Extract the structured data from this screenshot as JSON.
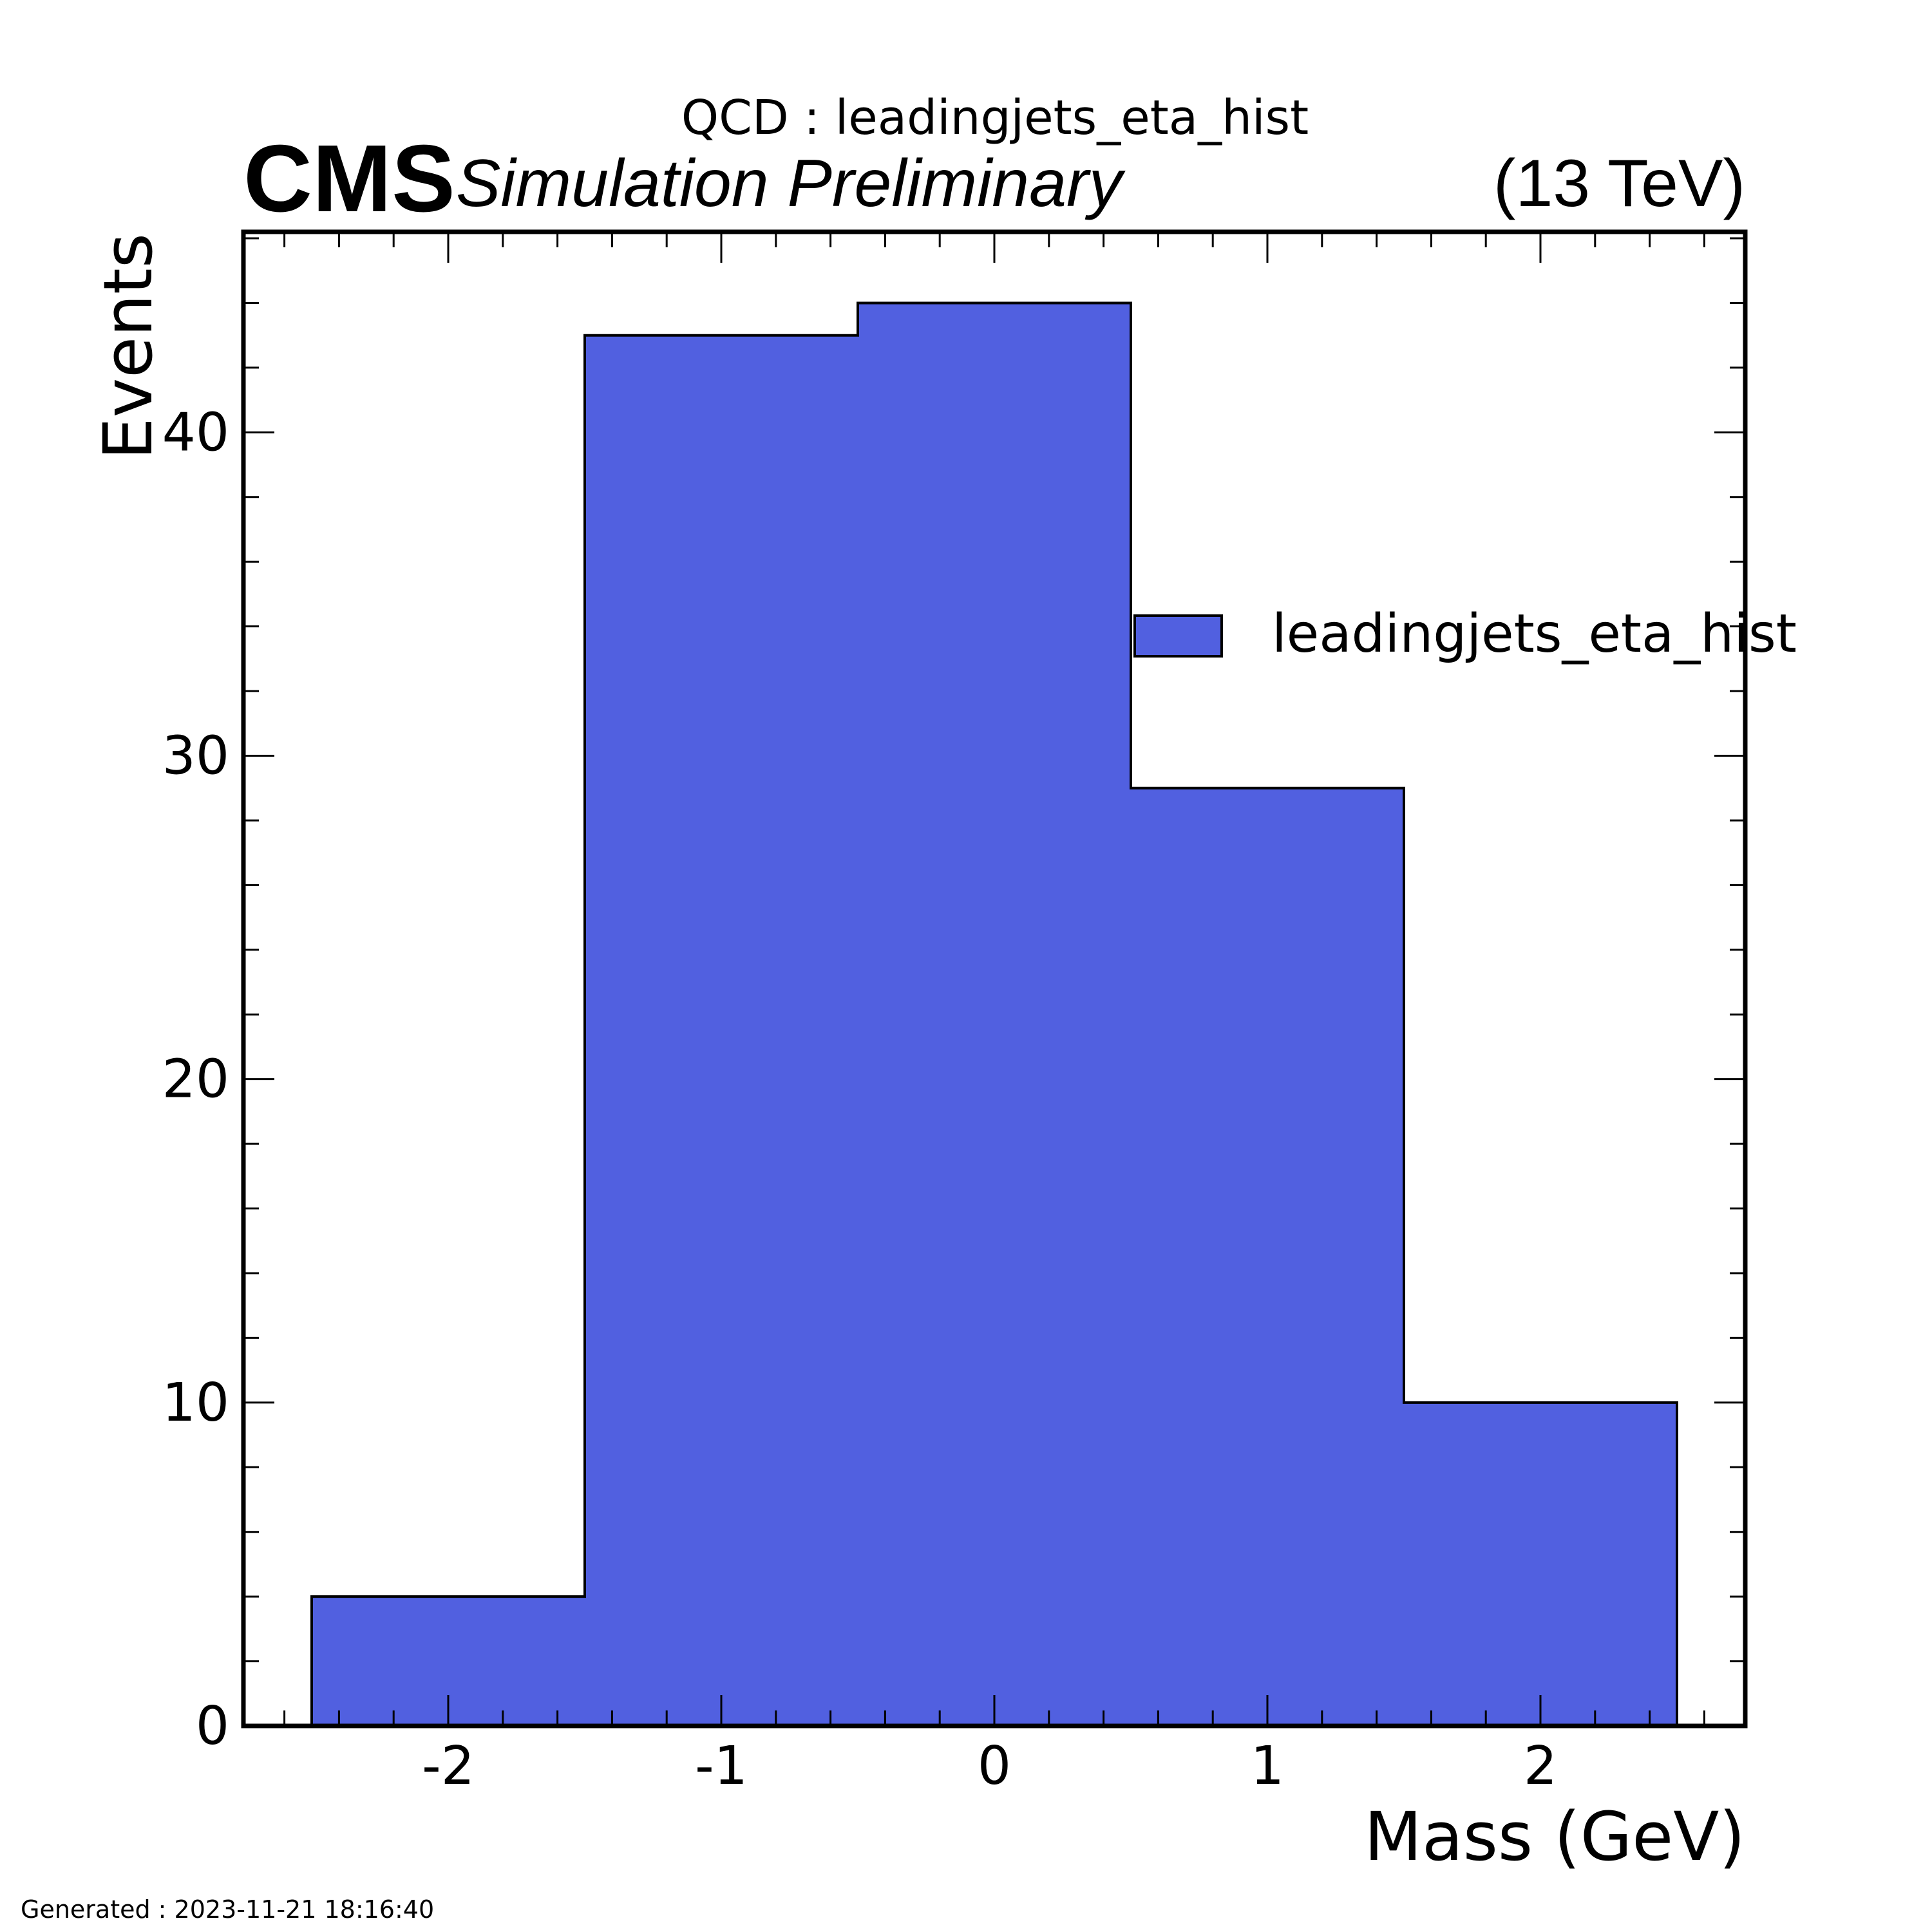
{
  "header": {
    "title": "QCD : leadingjets_eta_hist",
    "experiment": "CMS",
    "status": "Simulation Preliminary",
    "energy": "(13 TeV)"
  },
  "footer": {
    "generated": "Generated : 2023-11-21 18:16:40"
  },
  "colors": {
    "fill": "#5160e0",
    "edge": "#000000"
  },
  "chart_data": {
    "type": "bar",
    "histogram": true,
    "bin_edges": [
      -2.5,
      -1.5,
      -0.5,
      0.5,
      1.5,
      2.5
    ],
    "values": [
      4,
      43,
      44,
      29,
      10
    ],
    "x_ticks": [
      -2,
      -1,
      0,
      1,
      2
    ],
    "x_tick_labels": [
      "-2",
      "-1",
      "0",
      "1",
      "2"
    ],
    "y_ticks": [
      0,
      10,
      20,
      30,
      40
    ],
    "y_tick_labels": [
      "0",
      "10",
      "20",
      "30",
      "40"
    ],
    "xlabel": "Mass (GeV)",
    "ylabel": "Events",
    "xlim": [
      -2.75,
      2.75
    ],
    "ylim": [
      0,
      46.2
    ],
    "legend": {
      "position": "right",
      "entries": [
        "leadingjets_eta_hist"
      ]
    },
    "grid": false
  }
}
